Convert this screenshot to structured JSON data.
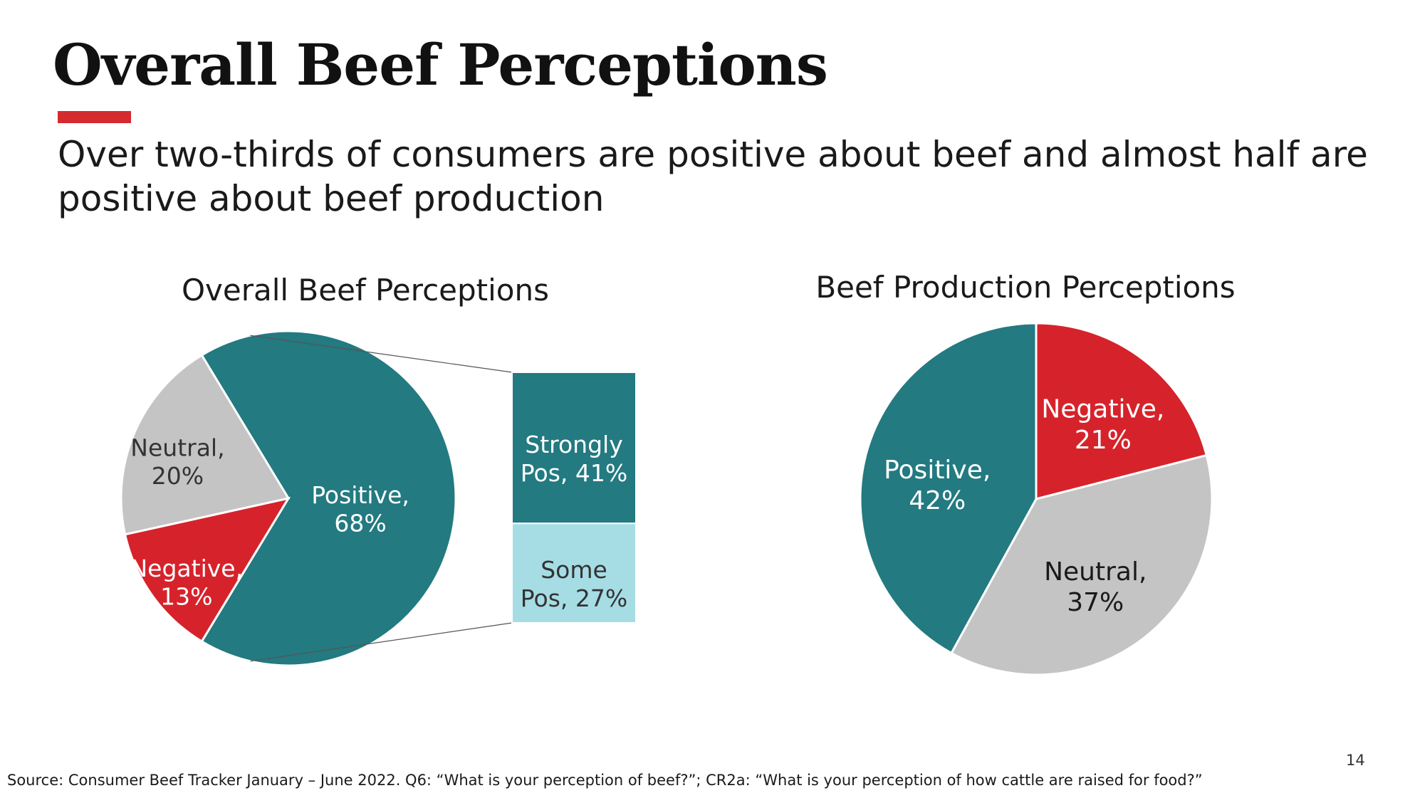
{
  "slide": {
    "title": "Overall Beef Perceptions",
    "subtitle": "Over two-thirds of consumers are positive about beef and almost half are positive about beef production",
    "source": "Source: Consumer Beef Tracker January – June 2022. Q6: “What is your perception of beef?”; CR2a: “What is your perception of how cattle are raised for food?”",
    "page_number": "14"
  },
  "colors": {
    "teal": "#237a80",
    "light_teal": "#a6dde5",
    "gray": "#c4c4c4",
    "red": "#d6232b",
    "accent": "#d52a2e"
  },
  "chart_data": [
    {
      "type": "pie",
      "title": "Overall Beef Perceptions",
      "slices": [
        {
          "label": "Positive",
          "value": 68,
          "color": "#237a80",
          "text_color": "#ffffff"
        },
        {
          "label": "Negative",
          "value": 13,
          "color": "#d6232b",
          "text_color": "#ffffff"
        },
        {
          "label": "Neutral",
          "value": 20,
          "color": "#c4c4c4",
          "text_color": "#333333"
        }
      ],
      "breakdown": {
        "of": "Positive",
        "type": "stacked-bar",
        "segments": [
          {
            "label_line1": "Strongly",
            "label_line2": "Pos, 41%",
            "value": 41,
            "color": "#237a80",
            "text_color": "#ffffff"
          },
          {
            "label_line1": "Some",
            "label_line2": "Pos, 27%",
            "value": 27,
            "color": "#a6dde5",
            "text_color": "#333333"
          }
        ]
      }
    },
    {
      "type": "pie",
      "title": "Beef Production Perceptions",
      "slices": [
        {
          "label": "Negative",
          "value": 21,
          "color": "#d6232b",
          "text_color": "#ffffff"
        },
        {
          "label": "Neutral",
          "value": 37,
          "color": "#c4c4c4",
          "text_color": "#1a1a1a"
        },
        {
          "label": "Positive",
          "value": 42,
          "color": "#237a80",
          "text_color": "#ffffff"
        }
      ]
    }
  ]
}
